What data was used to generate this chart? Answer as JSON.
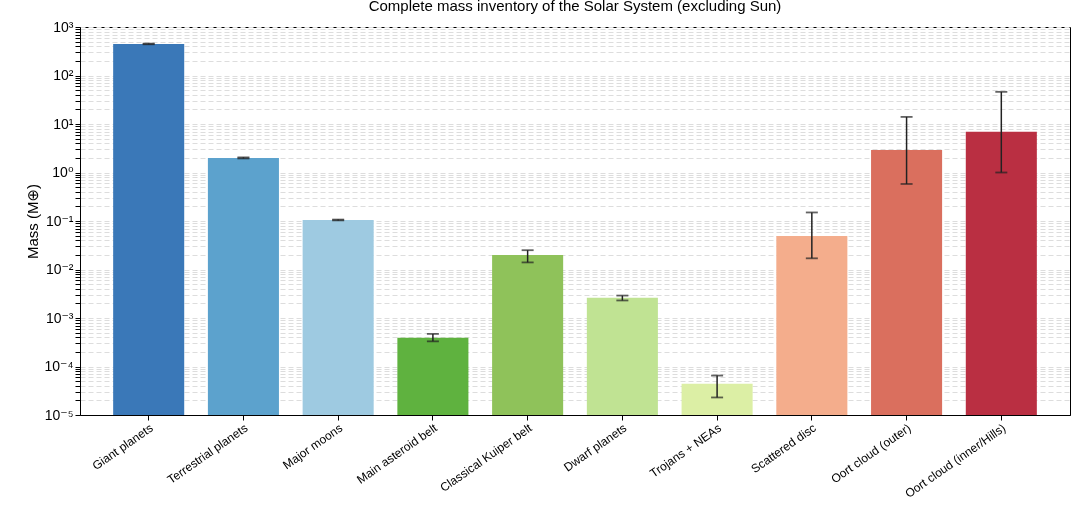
{
  "chart_data": {
    "type": "bar",
    "title": "Complete mass inventory of the Solar System (excluding Sun)",
    "ylabel": "Mass (M⊕)",
    "categories": [
      "Giant planets",
      "Terrestrial planets",
      "Major moons",
      "Main asteroid belt",
      "Classical Kuiper belt",
      "Dwarf planets",
      "Trojans + NEAs",
      "Scattered disc",
      "Oort cloud (outer)",
      "Oort cloud (inner/Hills)"
    ],
    "values": [
      447,
      2.0,
      0.105,
      0.00039,
      0.02,
      0.0026,
      4.4e-05,
      0.049,
      2.9,
      6.9
    ],
    "colors": [
      "#3a78b8",
      "#5ca2cd",
      "#9ecae1",
      "#5fb23f",
      "#8fc25a",
      "#c0e393",
      "#dcefa5",
      "#f4ad8c",
      "#da6f5e",
      "#ba2f42"
    ],
    "errors": [
      [
        440,
        455
      ],
      [
        1.95,
        2.05
      ],
      [
        0.103,
        0.107
      ],
      [
        0.00033,
        0.00047
      ],
      [
        0.014,
        0.025
      ],
      [
        0.0023,
        0.0029
      ],
      [
        2.3e-05,
        6.5e-05
      ],
      [
        0.017,
        0.15
      ],
      [
        0.58,
        14
      ],
      [
        1.0,
        46
      ]
    ],
    "log": true,
    "ylim": [
      1e-05,
      1000
    ],
    "yticks": [
      {
        "value": 1e-05,
        "label": "10⁻⁵"
      },
      {
        "value": 0.0001,
        "label": "10⁻⁴"
      },
      {
        "value": 0.001,
        "label": "10⁻³"
      },
      {
        "value": 0.01,
        "label": "10⁻²"
      },
      {
        "value": 0.1,
        "label": "10⁻¹"
      },
      {
        "value": 1,
        "label": "10⁰"
      },
      {
        "value": 10,
        "label": "10¹"
      },
      {
        "value": 100,
        "label": "10²"
      },
      {
        "value": 1000,
        "label": "10³"
      }
    ],
    "grid": "y"
  }
}
